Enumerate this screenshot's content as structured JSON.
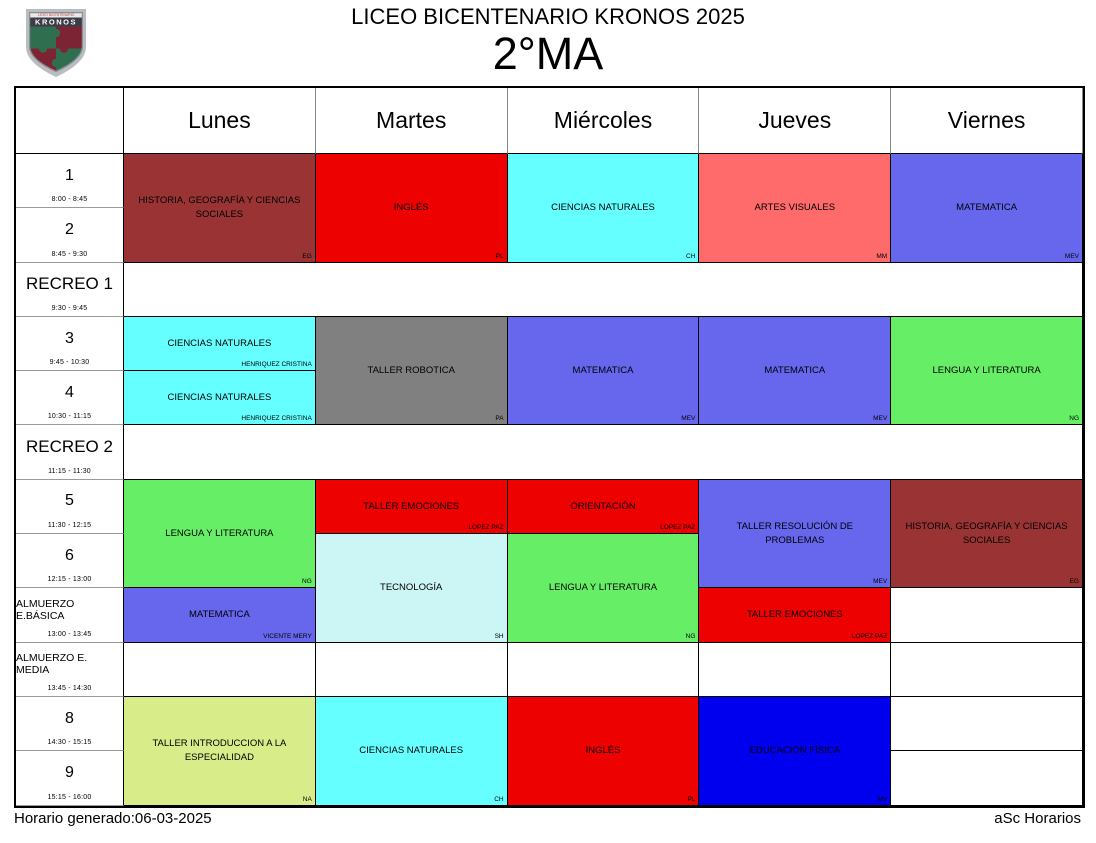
{
  "header": {
    "school_title": "LICEO BICENTENARIO KRONOS 2025",
    "class_title": "2°MA",
    "logo_text": "KRONOS",
    "logo_subtext": "LICEO BICENTENARIO"
  },
  "footer": {
    "generated": "Horario generado:06-03-2025",
    "brand": "aSc Horarios"
  },
  "days": [
    "Lunes",
    "Martes",
    "Miércoles",
    "Jueves",
    "Viernes"
  ],
  "periods": [
    {
      "label": "1",
      "time": "8:00 - 8:45"
    },
    {
      "label": "2",
      "time": "8:45 - 9:30"
    },
    {
      "label": "RECREO 1",
      "time": "9:30 - 9:45"
    },
    {
      "label": "3",
      "time": "9:45 - 10:30"
    },
    {
      "label": "4",
      "time": "10:30 - 11:15"
    },
    {
      "label": "RECREO 2",
      "time": "11:15 - 11:30"
    },
    {
      "label": "5",
      "time": "11:30 - 12:15"
    },
    {
      "label": "6",
      "time": "12:15 - 13:00"
    },
    {
      "label": "ALMUERZO E.BÁSICA",
      "time": "13:00 - 13:45"
    },
    {
      "label": "ALMUERZO E. MEDIA",
      "time": "13:45 - 14:30"
    },
    {
      "label": "8",
      "time": "14:30 - 15:15"
    },
    {
      "label": "9",
      "time": "15:15 - 16:00"
    }
  ],
  "colors": {
    "maroon": "#9A3434",
    "red": "#EE0101",
    "cyan": "#66FFFF",
    "salmon": "#FF6A6A",
    "blue": "#6767EE",
    "gray": "#808080",
    "green": "#66EE66",
    "paleblue": "#CCF5F5",
    "lime": "#D9EC8A",
    "darkblue": "#0000EE",
    "white": "#FFFFFF",
    "logo_green": "#2F6E4F",
    "logo_maroon": "#7C2334"
  },
  "cells": [
    {
      "r": 0,
      "c": 0,
      "rs": 2,
      "bg": "maroon",
      "t": "HISTORIA, GEOGRAFÍA Y CIENCIAS SOCIALES",
      "s": "EG"
    },
    {
      "r": 0,
      "c": 1,
      "rs": 2,
      "bg": "red",
      "t": "INGLÉS",
      "s": "PL"
    },
    {
      "r": 0,
      "c": 2,
      "rs": 2,
      "bg": "cyan",
      "t": "CIENCIAS NATURALES",
      "s": "CH"
    },
    {
      "r": 0,
      "c": 3,
      "rs": 2,
      "bg": "salmon",
      "t": "ARTES VISUALES",
      "s": "MM"
    },
    {
      "r": 0,
      "c": 4,
      "rs": 2,
      "bg": "blue",
      "t": "MATEMATICA",
      "s": "MEV"
    },
    {
      "r": 2,
      "c": 0,
      "cs": 5,
      "bg": "white",
      "t": "",
      "s": ""
    },
    {
      "r": 3,
      "c": 0,
      "bg": "cyan",
      "t": "CIENCIAS NATURALES",
      "s": "HENRIQUEZ CRISTINA"
    },
    {
      "r": 4,
      "c": 0,
      "bg": "cyan",
      "t": "CIENCIAS NATURALES",
      "s": "HENRIQUEZ CRISTINA"
    },
    {
      "r": 3,
      "c": 1,
      "rs": 2,
      "bg": "gray",
      "t": "TALLER ROBOTICA",
      "s": "PA"
    },
    {
      "r": 3,
      "c": 2,
      "rs": 2,
      "bg": "blue",
      "t": "MATEMATICA",
      "s": "MEV"
    },
    {
      "r": 3,
      "c": 3,
      "rs": 2,
      "bg": "blue",
      "t": "MATEMATICA",
      "s": "MEV"
    },
    {
      "r": 3,
      "c": 4,
      "rs": 2,
      "bg": "green",
      "t": "LENGUA Y LITERATURA",
      "s": "NG"
    },
    {
      "r": 5,
      "c": 0,
      "cs": 5,
      "bg": "white",
      "t": "",
      "s": ""
    },
    {
      "r": 6,
      "c": 0,
      "rs": 2,
      "bg": "green",
      "t": "LENGUA Y LITERATURA",
      "s": "NG"
    },
    {
      "r": 6,
      "c": 1,
      "bg": "red",
      "t": "TALLER EMOCIONES",
      "s": "LOPEZ PAZ"
    },
    {
      "r": 6,
      "c": 2,
      "bg": "red",
      "t": "ORIENTACIÓN",
      "s": "LOPEZ PAZ"
    },
    {
      "r": 6,
      "c": 3,
      "rs": 2,
      "bg": "blue",
      "t": "TALLER RESOLUCIÓN DE PROBLEMAS",
      "s": "MEV"
    },
    {
      "r": 6,
      "c": 4,
      "rs": 2,
      "bg": "maroon",
      "t": "HISTORIA, GEOGRAFÍA Y CIENCIAS SOCIALES",
      "s": "EG"
    },
    {
      "r": 7,
      "c": 1,
      "rs": 2,
      "bg": "paleblue",
      "t": "TECNOLOGÍA",
      "s": "SH"
    },
    {
      "r": 7,
      "c": 2,
      "rs": 2,
      "bg": "green",
      "t": "LENGUA Y LITERATURA",
      "s": "NG"
    },
    {
      "r": 8,
      "c": 0,
      "bg": "blue",
      "t": "MATEMATICA",
      "s": "VICENTE MERY"
    },
    {
      "r": 8,
      "c": 3,
      "bg": "red",
      "t": "TALLER EMOCIONES",
      "s": "LOPEZ PAZ"
    },
    {
      "r": 8,
      "c": 4,
      "bg": "white",
      "t": "",
      "s": ""
    },
    {
      "r": 9,
      "c": 0,
      "bg": "white",
      "t": "",
      "s": ""
    },
    {
      "r": 9,
      "c": 1,
      "bg": "white",
      "t": "",
      "s": ""
    },
    {
      "r": 9,
      "c": 2,
      "bg": "white",
      "t": "",
      "s": ""
    },
    {
      "r": 9,
      "c": 3,
      "bg": "white",
      "t": "",
      "s": ""
    },
    {
      "r": 9,
      "c": 4,
      "bg": "white",
      "t": "",
      "s": ""
    },
    {
      "r": 10,
      "c": 0,
      "rs": 2,
      "bg": "lime",
      "t": "TALLER INTRODUCCION  A LA ESPECIALIDAD",
      "s": "NA"
    },
    {
      "r": 10,
      "c": 1,
      "rs": 2,
      "bg": "cyan",
      "t": "CIENCIAS NATURALES",
      "s": "CH"
    },
    {
      "r": 10,
      "c": 2,
      "rs": 2,
      "bg": "red",
      "t": "INGLÉS",
      "s": "PL"
    },
    {
      "r": 10,
      "c": 3,
      "rs": 2,
      "bg": "darkblue",
      "t": "EDUCACIÓN FÍSICA",
      "s": "MV"
    },
    {
      "r": 10,
      "c": 4,
      "bg": "white",
      "t": "",
      "s": ""
    },
    {
      "r": 11,
      "c": 4,
      "bg": "white",
      "t": "",
      "s": ""
    }
  ]
}
